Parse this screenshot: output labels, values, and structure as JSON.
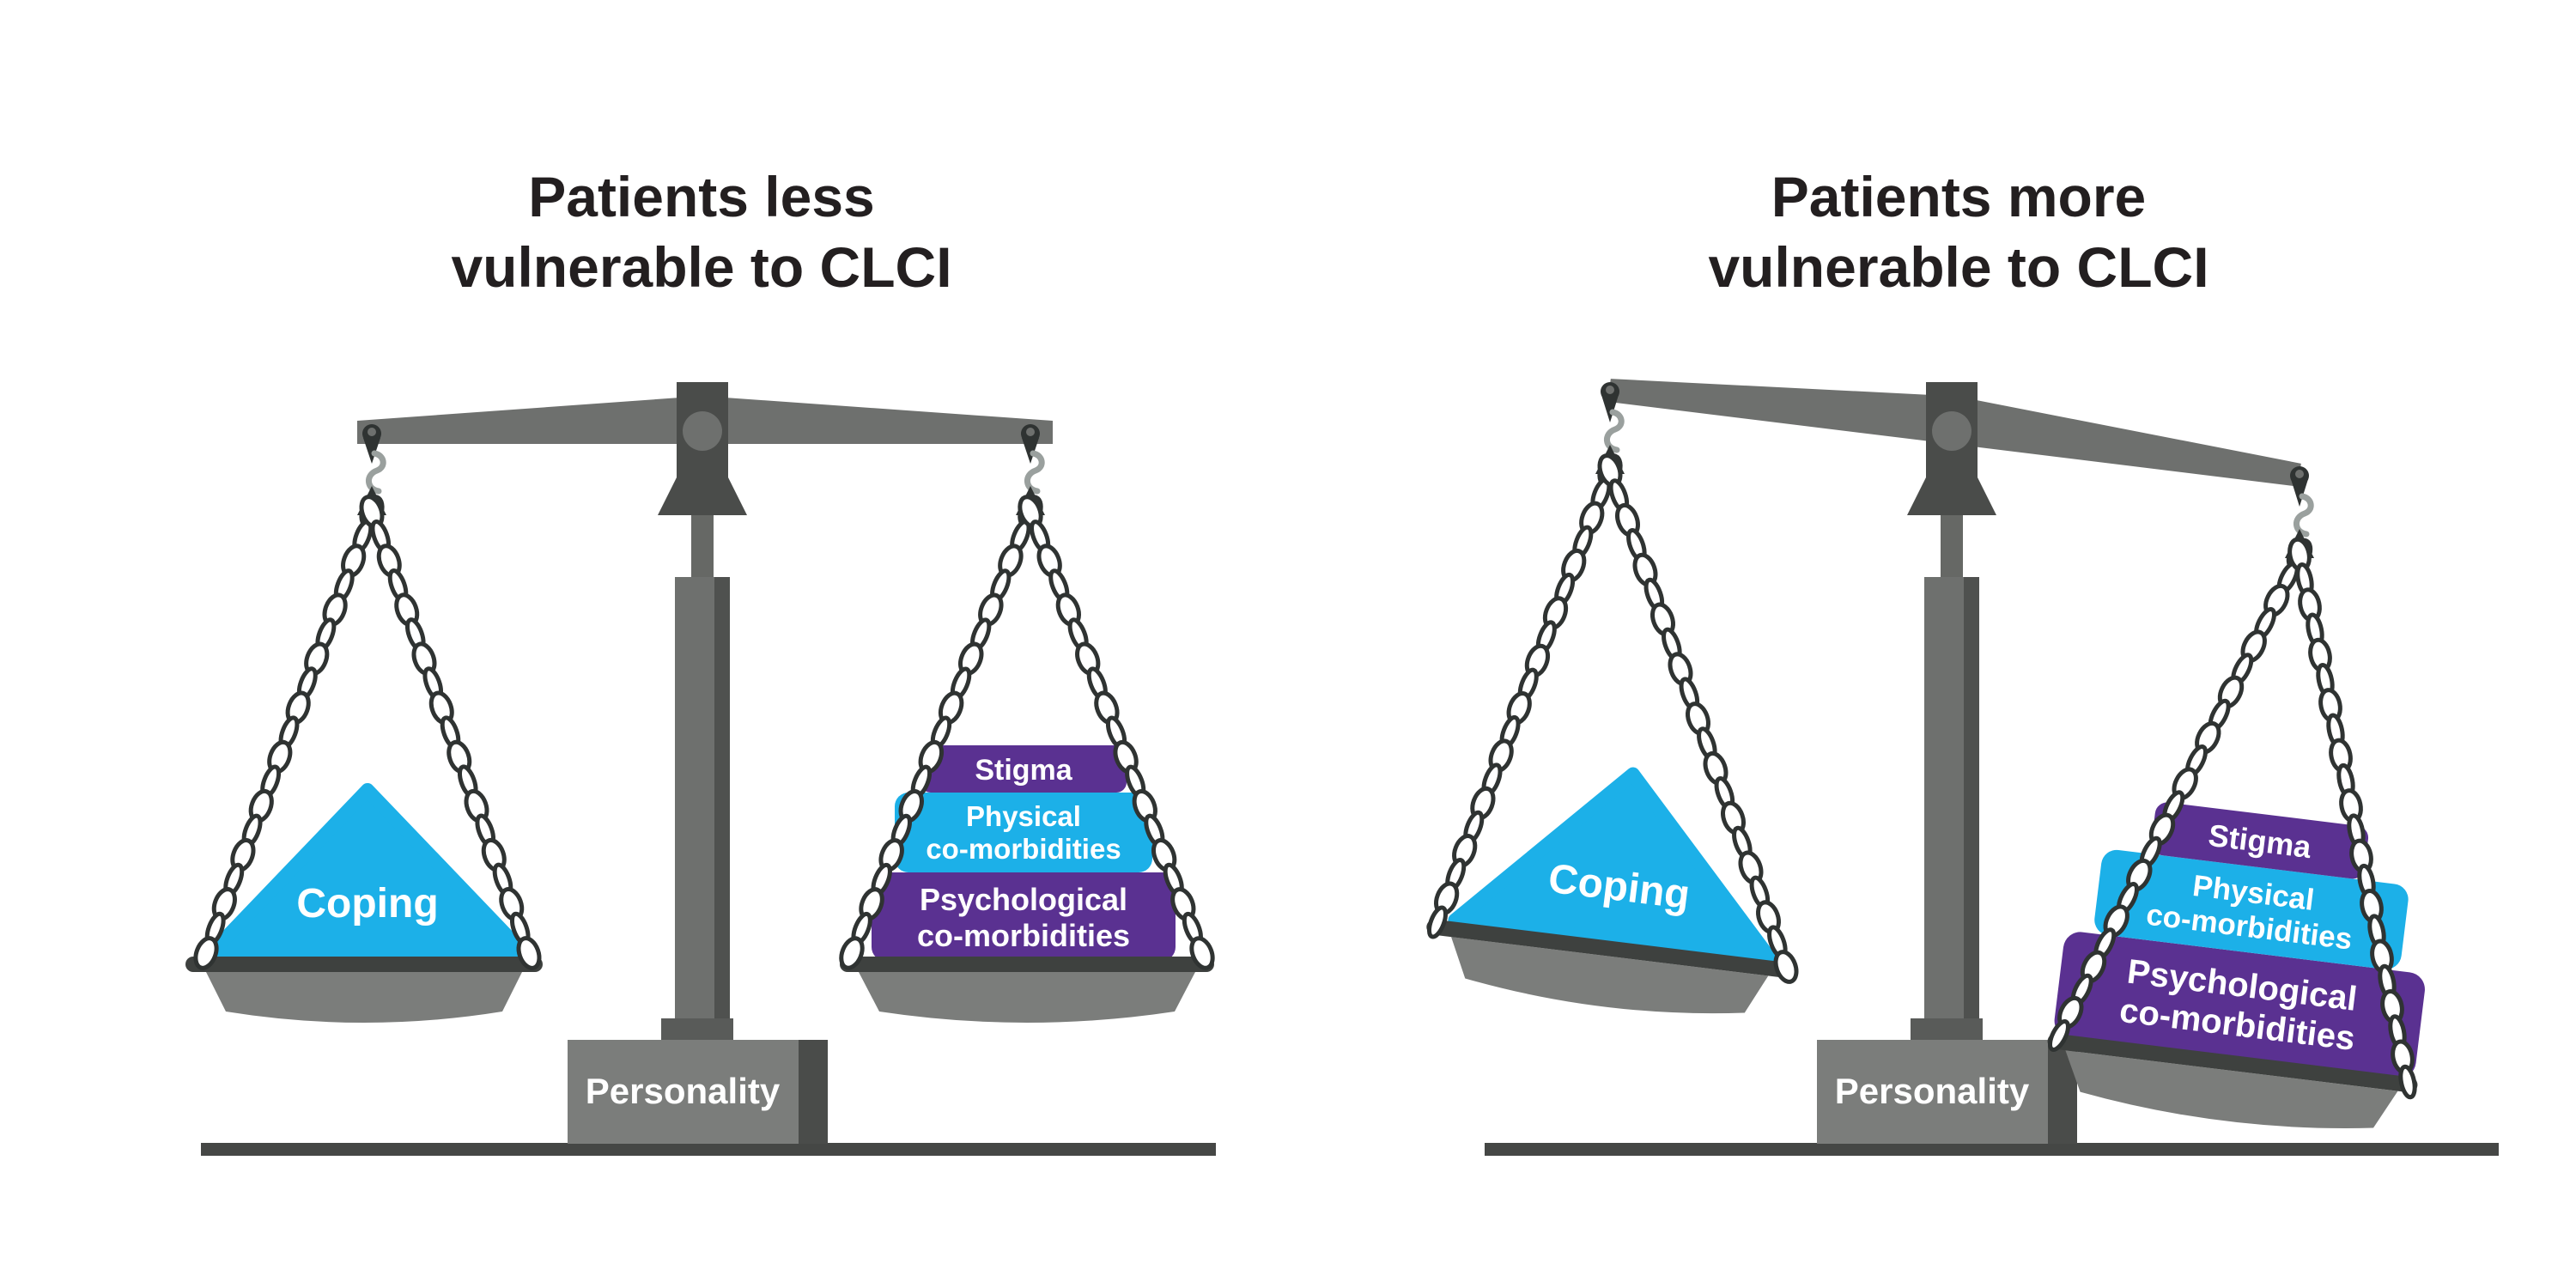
{
  "left_scale": {
    "title": {
      "line1": "Patients less",
      "line2": "vulnerable to CLCI"
    },
    "left_pan": {
      "label": "Coping"
    },
    "right_pan": {
      "blocks": [
        {
          "lines": [
            "Stigma"
          ]
        },
        {
          "lines": [
            "Physical",
            "co-morbidities"
          ]
        },
        {
          "lines": [
            "Psychological",
            "co-morbidities"
          ]
        }
      ]
    },
    "base": {
      "label": "Personality"
    }
  },
  "right_scale": {
    "title": {
      "line1": "Patients more",
      "line2": "vulnerable to CLCI"
    },
    "left_pan": {
      "label": "Coping"
    },
    "right_pan": {
      "blocks": [
        {
          "lines": [
            "Stigma"
          ]
        },
        {
          "lines": [
            "Physical",
            "co-morbidities"
          ]
        },
        {
          "lines": [
            "Psychological",
            "co-morbidities"
          ]
        }
      ]
    },
    "base": {
      "label": "Personality"
    }
  },
  "colors": {
    "cyan": "#1cb0e8",
    "purple": "#5a3191",
    "beam_gray": "#6e706e",
    "dark_gray": "#4a4c4a",
    "pan_dish_gray": "#7b7d7b",
    "pan_bar_gray": "#3e413f",
    "ground_gray": "#454745",
    "chain_dark": "#2f3332",
    "hook_gray": "#9aa09e",
    "title_text": "#231f20",
    "label_text": "#ffffff"
  }
}
